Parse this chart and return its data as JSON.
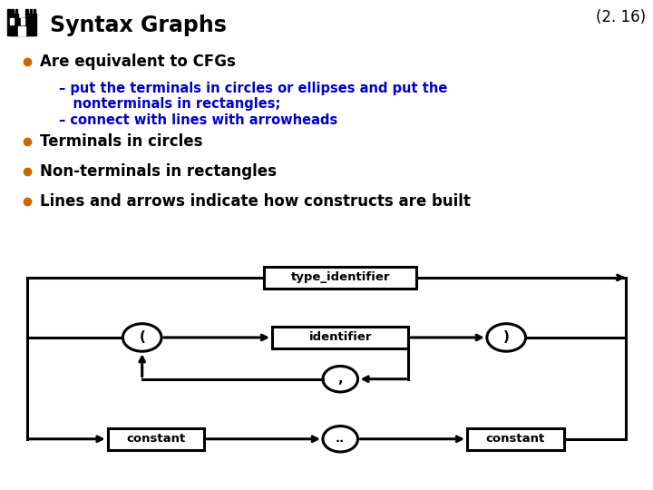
{
  "title": "Syntax Graphs",
  "slide_number": "(2. 16)",
  "background_color": "#ffffff",
  "title_color": "#000000",
  "title_fontsize": 17,
  "slide_num_fontsize": 12,
  "bullet_color": "#cc6600",
  "text_color_dark": "#000000",
  "text_color_blue": "#0000cc",
  "bullet1": "Are equivalent to CFGs",
  "sub1a": "– put the terminals in circles or ellipses and put the",
  "sub1b": "   nonterminals in rectangles;",
  "sub2": "– connect with lines with arrowheads",
  "bullet2": "Terminals in circles",
  "bullet3": "Non-terminals in rectangles",
  "bullet4": "Lines and arrows indicate how constructs are built",
  "line_color": "#000000",
  "lw": 2.2
}
